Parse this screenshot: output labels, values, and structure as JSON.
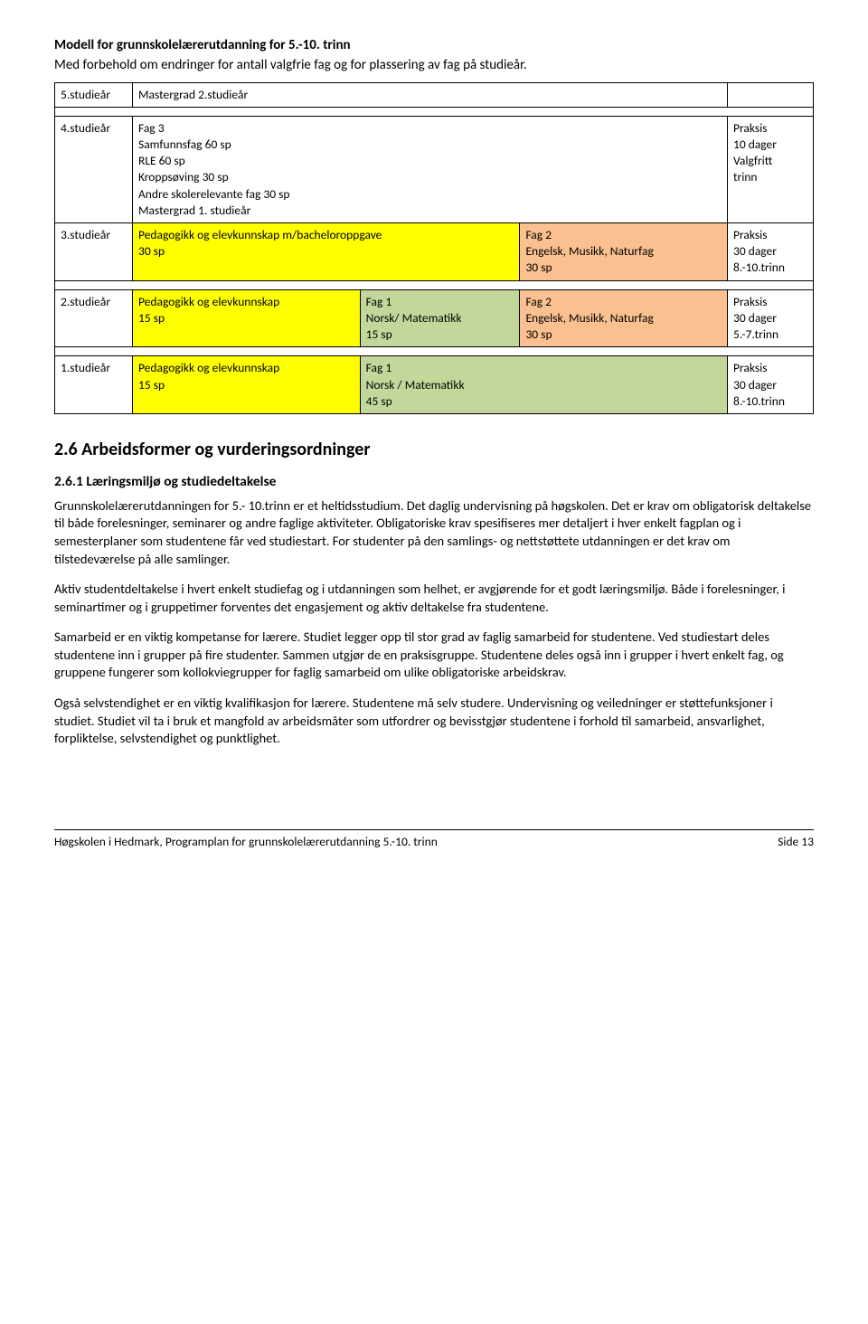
{
  "title": "Modell for grunnskolelærerutdanning for 5.-10. trinn",
  "subtitle": "Med forbehold om endringer for antall valgfrie fag og for plassering av fag på studieår.",
  "rows": {
    "r5": {
      "label": "5.studieår",
      "content": "Mastergrad 2.studieår"
    },
    "r4": {
      "label": "4.studieår",
      "content": "Fag 3\nSamfunnsfag 60 sp\nRLE 60 sp\nKroppsøving 30 sp\nAndre skolerelevante fag 30 sp\nMastergrad 1. studieår",
      "praksis": "Praksis\n10 dager\nValgfritt\ntrinn"
    },
    "r3": {
      "label": "3.studieår",
      "ped": "Pedagogikk og elevkunnskap m/bacheloroppgave\n30 sp",
      "fag2": "Fag 2\nEngelsk, Musikk, Naturfag\n30 sp",
      "praksis": "Praksis\n30 dager\n8.-10.trinn"
    },
    "r2": {
      "label": "2.studieår",
      "ped": "Pedagogikk og elevkunnskap\n15 sp",
      "fag1": "Fag 1\nNorsk/ Matematikk\n15 sp",
      "fag2": "Fag 2\nEngelsk, Musikk, Naturfag\n30 sp",
      "praksis": "Praksis\n30 dager\n5.-7.trinn"
    },
    "r1": {
      "label": "1.studieår",
      "ped": "Pedagogikk og elevkunnskap\n15 sp",
      "fag1": "Fag 1\nNorsk / Matematikk\n45 sp",
      "praksis": "Praksis\n30 dager\n8.-10.trinn"
    }
  },
  "section_heading": "2.6   Arbeidsformer og vurderingsordninger",
  "subsection_heading": "2.6.1   Læringsmiljø og studiedeltakelse",
  "paragraphs": [
    "Grunnskolelærerutdanningen for 5.- 10.trinn er et heltidsstudium. Det daglig undervisning på høgskolen. Det er krav om obligatorisk deltakelse til både forelesninger, seminarer og andre faglige aktiviteter. Obligatoriske krav spesifiseres mer detaljert i hver enkelt fagplan og i semesterplaner som studentene får ved studiestart. For studenter på den samlings- og nettstøttete utdanningen er det krav om tilstedeværelse på alle samlinger.",
    "Aktiv studentdeltakelse i hvert enkelt studiefag og i utdanningen som helhet, er avgjørende for et godt læringsmiljø. Både i forelesninger, i seminartimer og i gruppetimer forventes det engasjement og aktiv deltakelse fra studentene.",
    "Samarbeid er en viktig kompetanse for lærere. Studiet legger opp til stor grad av faglig samarbeid for studentene. Ved studiestart deles studentene inn i grupper på fire studenter. Sammen utgjør de en praksisgruppe. Studentene deles også inn i grupper i hvert enkelt fag, og gruppene fungerer som kollokviegrupper for faglig samarbeid om ulike obligatoriske arbeidskrav.",
    "Også selvstendighet er en viktig kvalifikasjon for lærere. Studentene må selv studere. Undervisning og veiledninger er støttefunksjoner i studiet. Studiet vil ta i bruk et mangfold av arbeidsmåter som utfordrer og bevisstgjør studentene i forhold til samarbeid, ansvarlighet, forpliktelse, selvstendighet og punktlighet."
  ],
  "footer_left": "Høgskolen i Hedmark, Programplan for grunnskolelærerutdanning 5.-10. trinn",
  "footer_right": "Side 13"
}
